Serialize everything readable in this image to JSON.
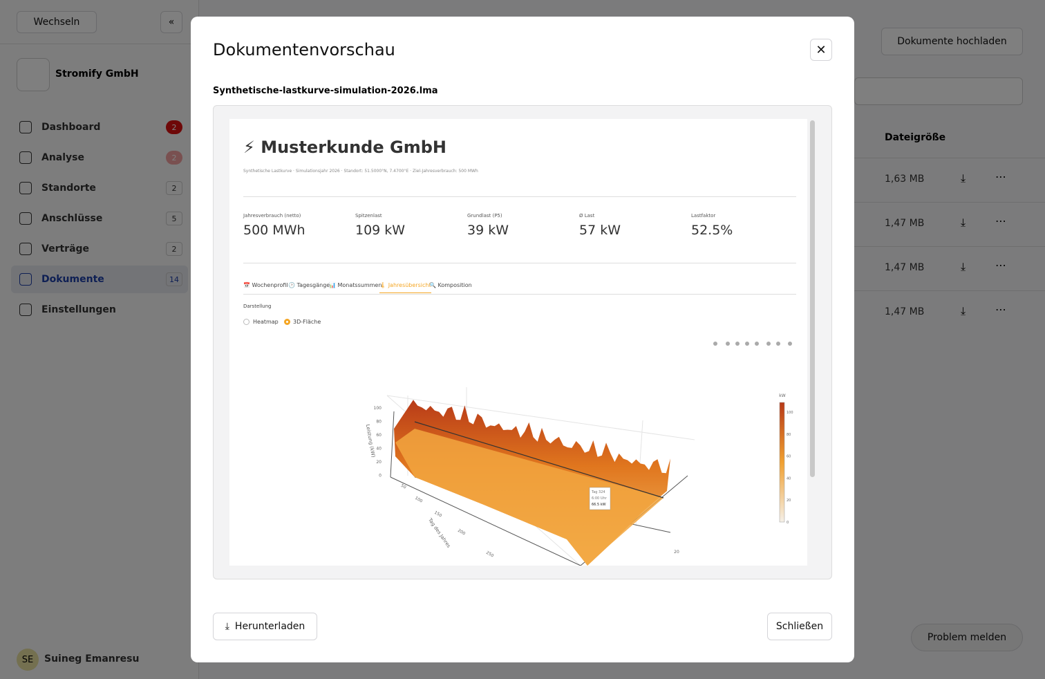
{
  "sidebar": {
    "switch_button": "Wechseln",
    "org": "Stromify GmbH",
    "nav": [
      {
        "label": "Dashboard",
        "count": 2
      },
      {
        "label": "Analyse",
        "count": 2
      },
      {
        "label": "Standorte",
        "count": 2
      },
      {
        "label": "Anschlüsse",
        "count": 5
      },
      {
        "label": "Verträge",
        "count": 2
      },
      {
        "label": "Dokumente",
        "count": 14
      },
      {
        "label": "Einstellungen"
      }
    ],
    "user": {
      "initials": "SE",
      "name": "Suineg Emanresu"
    }
  },
  "main": {
    "upload_button": "Dokumente hochladen",
    "size_column": "Dateigröße",
    "sizes": [
      "1,63 MB",
      "1,47 MB",
      "1,47 MB",
      "1,47 MB"
    ],
    "report_button": "Problem melden"
  },
  "modal": {
    "title": "Dokumentenvorschau",
    "filename": "Synthetische-lastkurve-simulation-2026.lma",
    "download_button": "Herunterladen",
    "close_button": "Schließen",
    "preview": {
      "title": "⚡ Musterkunde GmbH",
      "subtitle": "Synthetische Lastkurve · Simulationsjahr 2026 · Standort: 51.5000°N, 7.4700°E · Ziel-Jahresverbrauch: 500 MWh",
      "kpis": [
        {
          "label": "Jahresverbrauch (netto)",
          "value": "500 MWh"
        },
        {
          "label": "Spitzenlast",
          "value": "109 kW"
        },
        {
          "label": "Grundlast (P5)",
          "value": "39 kW"
        },
        {
          "label": "Ø Last",
          "value": "57 kW"
        },
        {
          "label": "Lastfaktor",
          "value": "52.5%"
        }
      ],
      "tabs": [
        "📅 Wochenprofil",
        "🕑 Tagesgänge",
        "📊 Monatssummen",
        "🌡 Jahresübersicht",
        "🔍 Komposition"
      ],
      "display_label": "Darstellung",
      "options": [
        "Heatmap",
        "3D-Fläche"
      ],
      "plot": {
        "z_title": "Leistung (kW)",
        "z_ticks": [
          100,
          80,
          60,
          40,
          20,
          0
        ],
        "day_title": "Tag des Jahres",
        "day_ticks": [
          50,
          100,
          150,
          200,
          250
        ],
        "hour_ticks": [
          20
        ],
        "tooltip": [
          "Tag 324",
          "6:00 Uhr",
          "66.5 kW"
        ],
        "colorbar_title": "kW",
        "colorbar_ticks": [
          100,
          80,
          60,
          40,
          20,
          0
        ]
      }
    }
  }
}
